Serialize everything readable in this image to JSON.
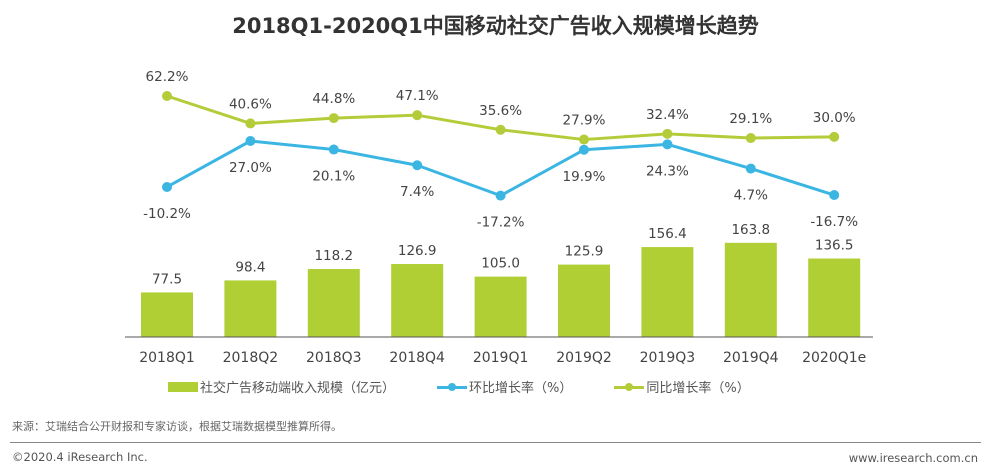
{
  "chart_data": {
    "type": "bar",
    "title": "2018Q1-2020Q1中国移动社交广告收入规模增长趋势",
    "categories": [
      "2018Q1",
      "2018Q2",
      "2018Q3",
      "2018Q4",
      "2019Q1",
      "2019Q2",
      "2019Q3",
      "2019Q4",
      "2020Q1e"
    ],
    "series": [
      {
        "name": "社交广告移动端收入规模（亿元）",
        "kind": "bar",
        "color": "#b0cf35",
        "values": [
          77.5,
          98.4,
          118.2,
          126.9,
          105.0,
          125.9,
          156.4,
          163.8,
          136.5
        ],
        "labels": [
          "77.5",
          "98.4",
          "118.2",
          "126.9",
          "105.0",
          "125.9",
          "156.4",
          "163.8",
          "136.5"
        ]
      },
      {
        "name": "环比增长率（%）",
        "kind": "line",
        "color": "#3bb6e3",
        "values": [
          -10.2,
          27.0,
          20.1,
          7.4,
          -17.2,
          19.9,
          24.3,
          4.7,
          -16.7
        ],
        "labels": [
          "-10.2%",
          "27.0%",
          "20.1%",
          "7.4%",
          "-17.2%",
          "19.9%",
          "24.3%",
          "4.7%",
          "-16.7%"
        ]
      },
      {
        "name": "同比增长率（%）",
        "kind": "line",
        "color": "#b5cc3a",
        "values": [
          62.2,
          40.6,
          44.8,
          47.1,
          35.6,
          27.9,
          32.4,
          29.1,
          30.0
        ],
        "labels": [
          "62.2%",
          "40.6%",
          "44.8%",
          "47.1%",
          "35.6%",
          "27.9%",
          "32.4%",
          "29.1%",
          "30.0%"
        ]
      }
    ],
    "xlabel": "",
    "ylabel": "",
    "grid": false,
    "legend": "bottom"
  },
  "footer": {
    "source": "来源：艾瑞结合公开财报和专家访谈，根据艾瑞数据模型推算所得。",
    "copyright": "©2020.4 iResearch Inc.",
    "website": "www.iresearch.com.cn"
  }
}
